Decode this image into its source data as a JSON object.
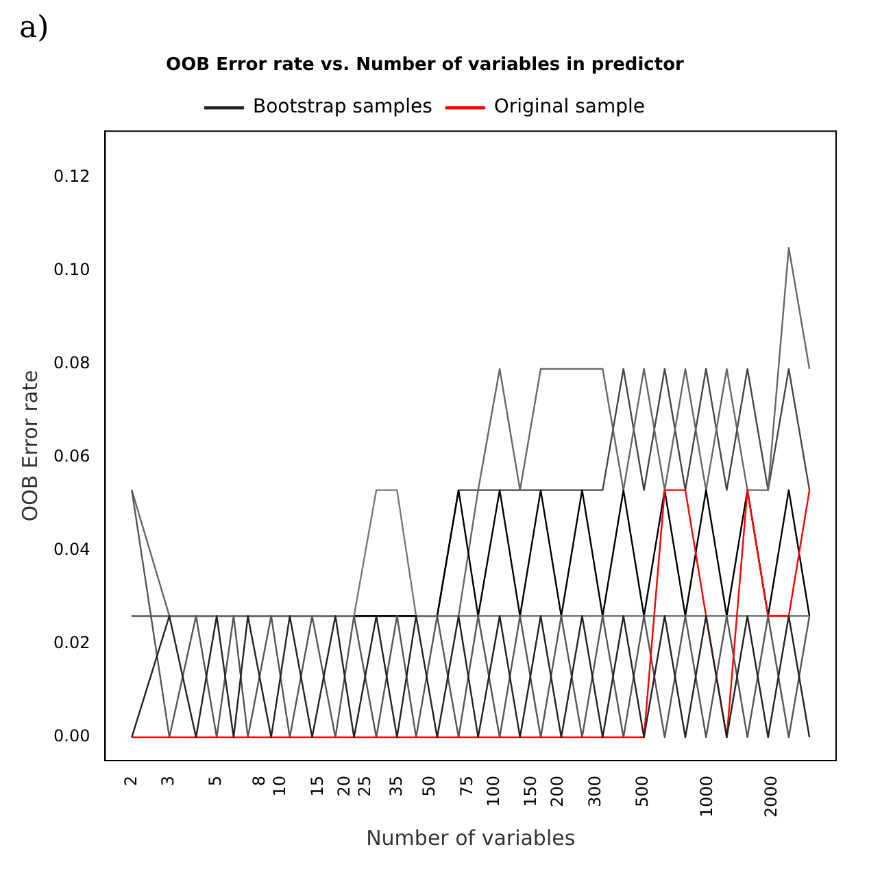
{
  "chart_data": {
    "type": "line",
    "title": "OOB Error rate vs. Number of variables in predictor",
    "xlabel": "Number of variables",
    "ylabel": "OOB Error rate",
    "annotations": [
      "a)"
    ],
    "x": [
      2,
      3,
      4,
      5,
      6,
      7,
      9,
      11,
      14,
      18,
      22,
      28,
      35,
      43,
      54,
      68,
      84,
      106,
      132,
      165,
      206,
      258,
      322,
      403,
      503,
      629,
      786,
      983,
      1229,
      1536,
      1920,
      2400,
      3000
    ],
    "series": [
      {
        "name": "Bootstrap samples",
        "color": "#222222",
        "values": [
          0,
          0.026,
          0,
          0.026,
          0,
          0.026,
          0,
          0.026,
          0,
          0.026,
          0,
          0.026,
          0,
          0.026,
          0,
          0.026,
          0,
          0.026,
          0,
          0.026,
          0,
          0.026,
          0,
          0.026,
          0,
          0.026,
          0,
          0.026,
          0,
          0.026,
          0,
          0.026,
          0
        ]
      },
      {
        "name": "Original sample",
        "color": "#ff0000",
        "values": [
          0,
          0,
          0,
          0,
          0,
          0,
          0,
          0,
          0,
          0,
          0,
          0,
          0,
          0,
          0,
          0,
          0,
          0,
          0,
          0,
          0,
          0,
          0,
          0,
          0,
          0.053,
          0.053,
          0.026,
          0,
          0.053,
          0.026,
          0.026,
          0.053
        ]
      },
      {
        "color": "#555555",
        "values": [
          0.053,
          0,
          0.026,
          0,
          0.026,
          0,
          0.026,
          0,
          0.026,
          0,
          0.026,
          0,
          0.026,
          0,
          0.026,
          0,
          0.026,
          0,
          0.026,
          0,
          0.026,
          0,
          0.026,
          0,
          0.026,
          0,
          0.026,
          0,
          0.026,
          0,
          0.026,
          0,
          0.026
        ]
      },
      {
        "color": "#777777",
        "values": [
          0.026,
          0.026,
          0.026,
          0.026,
          0.026,
          0.026,
          0.026,
          0.026,
          0.026,
          0.026,
          0.026,
          0.053,
          0.053,
          0.026,
          0.026,
          0.026,
          0.026,
          0.026,
          0.026,
          0.026,
          0.026,
          0.026,
          0.026,
          0.026,
          0.026,
          0.026,
          0.026,
          0.026,
          0.026,
          0.026,
          0.026,
          0.026,
          0.026
        ]
      },
      {
        "color": "#000000",
        "values": [
          0.026,
          0.026,
          0.026,
          0.026,
          0.026,
          0.026,
          0.026,
          0.026,
          0.026,
          0.026,
          0.026,
          0.026,
          0.026,
          0.026,
          0.026,
          0.053,
          0.026,
          0.053,
          0.026,
          0.053,
          0.026,
          0.053,
          0.026,
          0.053,
          0.026,
          0.053,
          0.026,
          0.053,
          0.026,
          0.053,
          0.026,
          0.053,
          0.026
        ]
      },
      {
        "color": "#666666",
        "values": [
          0.053,
          0.026,
          0.026,
          0.026,
          0.026,
          0.026,
          0.026,
          0.026,
          0.026,
          0.026,
          0.026,
          0.026,
          0.026,
          0.026,
          0.026,
          0.026,
          0.053,
          0.079,
          0.053,
          0.079,
          0.079,
          0.079,
          0.079,
          0.053,
          0.079,
          0.053,
          0.079,
          0.053,
          0.079,
          0.053,
          0.053,
          0.105,
          0.079
        ]
      },
      {
        "color": "#444444",
        "values": [
          0.026,
          0.026,
          0.026,
          0.026,
          0.026,
          0.026,
          0.026,
          0.026,
          0.026,
          0.026,
          0.026,
          0.026,
          0.026,
          0.026,
          0.026,
          0.053,
          0.053,
          0.053,
          0.053,
          0.053,
          0.053,
          0.053,
          0.053,
          0.079,
          0.053,
          0.079,
          0.053,
          0.079,
          0.053,
          0.079,
          0.053,
          0.079,
          0.053
        ]
      }
    ],
    "log": "x",
    "xlim": [
      1.5,
      4000
    ],
    "xticks": [
      2,
      3,
      5,
      8,
      10,
      15,
      20,
      25,
      35,
      50,
      75,
      100,
      150,
      200,
      300,
      500,
      1000,
      2000
    ],
    "ylim": [
      -0.005,
      0.13
    ],
    "yticks": [
      {
        "value": 0,
        "label": "0.00"
      },
      {
        "value": 0.02,
        "label": "0.02"
      },
      {
        "value": 0.04,
        "label": "0.04"
      },
      {
        "value": 0.06,
        "label": "0.06"
      },
      {
        "value": 0.08,
        "label": "0.08"
      },
      {
        "value": 0.1,
        "label": "0.10"
      },
      {
        "value": 0.12,
        "label": "0.12"
      }
    ],
    "grid": false,
    "legend": "top",
    "marker": "none",
    "line_style": "solid"
  }
}
